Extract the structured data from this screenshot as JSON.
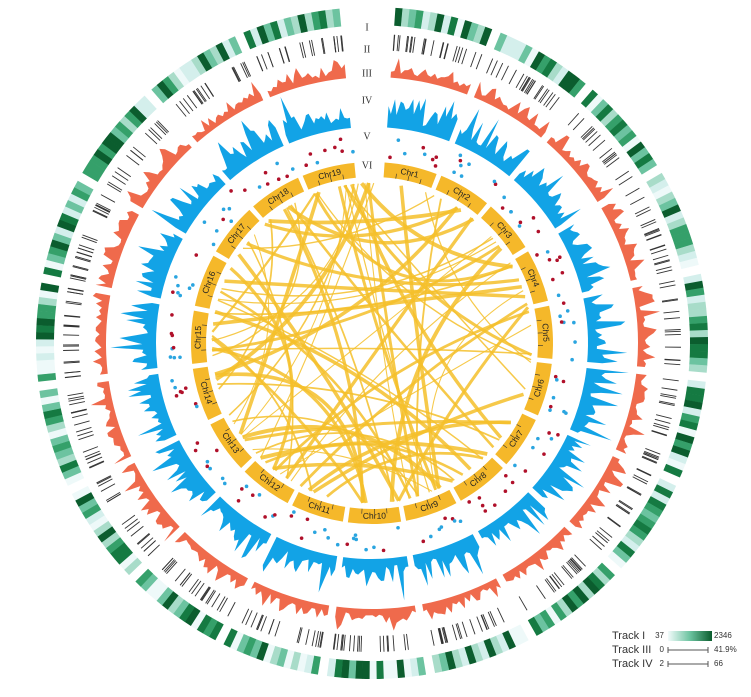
{
  "track_labels": [
    "I",
    "II",
    "III",
    "IV",
    "V",
    "VI"
  ],
  "chromosomes": [
    "Chr1",
    "Chr2",
    "Chr3",
    "Chr4",
    "Chr5",
    "Chr6",
    "Chr7",
    "Chr8",
    "Chr9",
    "Chr10",
    "Chr11",
    "Chr12",
    "Chr13",
    "Chr14",
    "Chr15",
    "Chr16",
    "Chr17",
    "Chr18",
    "Chr19"
  ],
  "legend": [
    {
      "name": "Track I",
      "min": "37",
      "max": "2346"
    },
    {
      "name": "Track III",
      "min": "0",
      "max": "41.9%"
    },
    {
      "name": "Track IV",
      "min": "2",
      "max": "66"
    }
  ]
}
